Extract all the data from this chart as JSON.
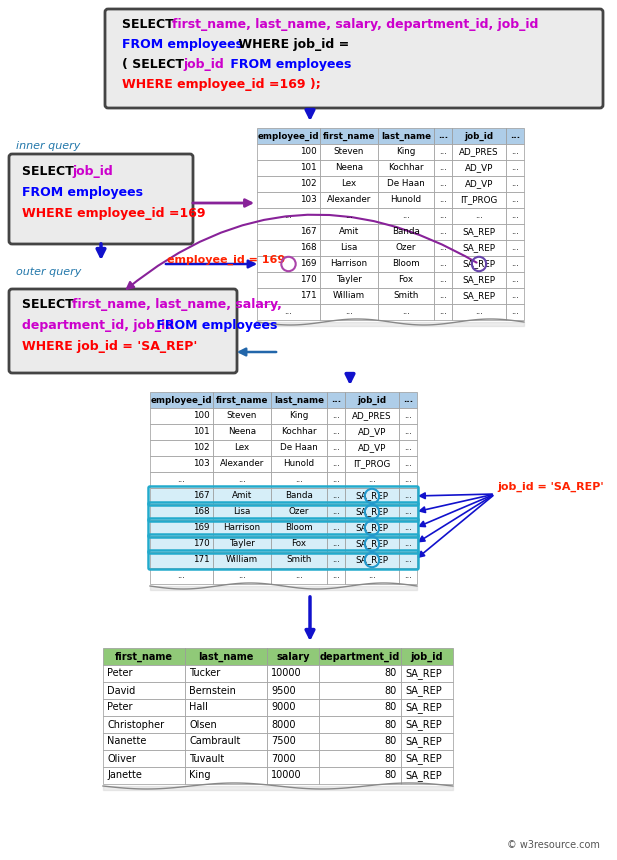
{
  "bg_color": "#ffffff",
  "table1_header": [
    "employee_id",
    "first_name",
    "last_name",
    "...",
    "job_id",
    "..."
  ],
  "table1_rows": [
    [
      "100",
      "Steven",
      "King",
      "...",
      "AD_PRES",
      "..."
    ],
    [
      "101",
      "Neena",
      "Kochhar",
      "...",
      "AD_VP",
      "..."
    ],
    [
      "102",
      "Lex",
      "De Haan",
      "...",
      "AD_VP",
      "..."
    ],
    [
      "103",
      "Alexander",
      "Hunold",
      "...",
      "IT_PROG",
      "..."
    ],
    [
      "...",
      "...",
      "...",
      "...",
      "...",
      "..."
    ],
    [
      "167",
      "Amit",
      "Banda",
      "...",
      "SA_REP",
      "..."
    ],
    [
      "168",
      "Lisa",
      "Ozer",
      "...",
      "SA_REP",
      "..."
    ],
    [
      "169",
      "Harrison",
      "Bloom",
      "...",
      "SA_REP",
      "..."
    ],
    [
      "170",
      "Tayler",
      "Fox",
      "...",
      "SA_REP",
      "..."
    ],
    [
      "171",
      "William",
      "Smith",
      "...",
      "SA_REP",
      "..."
    ],
    [
      "...",
      "...",
      "...",
      "...",
      "...",
      "..."
    ]
  ],
  "table2_header": [
    "employee_id",
    "first_name",
    "last_name",
    "...",
    "job_id",
    "..."
  ],
  "table2_rows": [
    [
      "100",
      "Steven",
      "King",
      "...",
      "AD_PRES",
      "..."
    ],
    [
      "101",
      "Neena",
      "Kochhar",
      "...",
      "AD_VP",
      "..."
    ],
    [
      "102",
      "Lex",
      "De Haan",
      "...",
      "AD_VP",
      "..."
    ],
    [
      "103",
      "Alexander",
      "Hunold",
      "...",
      "IT_PROG",
      "..."
    ],
    [
      "...",
      "...",
      "...",
      "...",
      "...",
      "..."
    ],
    [
      "167",
      "Amit",
      "Banda",
      "...",
      "SA_REP",
      "..."
    ],
    [
      "168",
      "Lisa",
      "Ozer",
      "...",
      "SA_REP",
      "..."
    ],
    [
      "169",
      "Harrison",
      "Bloom",
      "...",
      "SA_REP",
      "..."
    ],
    [
      "170",
      "Tayler",
      "Fox",
      "...",
      "SA_REP",
      "..."
    ],
    [
      "171",
      "William",
      "Smith",
      "...",
      "SA_REP",
      "..."
    ],
    [
      "...",
      "...",
      "...",
      "...",
      "...",
      "..."
    ]
  ],
  "result_header": [
    "first_name",
    "last_name",
    "salary",
    "department_id",
    "job_id"
  ],
  "result_rows": [
    [
      "Peter",
      "Tucker",
      "10000",
      "80",
      "SA_REP"
    ],
    [
      "David",
      "Bernstein",
      "9500",
      "80",
      "SA_REP"
    ],
    [
      "Peter",
      "Hall",
      "9000",
      "80",
      "SA_REP"
    ],
    [
      "Christopher",
      "Olsen",
      "8000",
      "80",
      "SA_REP"
    ],
    [
      "Nanette",
      "Cambrault",
      "7500",
      "80",
      "SA_REP"
    ],
    [
      "Oliver",
      "Tuvault",
      "7000",
      "80",
      "SA_REP"
    ],
    [
      "Janette",
      "King",
      "10000",
      "80",
      "SA_REP"
    ]
  ],
  "header_color": "#aecde8",
  "result_header_color": "#90c978",
  "sa_rep_highlight": "#d6eef8",
  "watermark": "© w3resource.com",
  "t1_col_widths": [
    63,
    58,
    56,
    18,
    54,
    18
  ],
  "t2_col_widths": [
    63,
    58,
    56,
    18,
    54,
    18
  ],
  "res_col_widths": [
    82,
    82,
    52,
    82,
    52
  ]
}
